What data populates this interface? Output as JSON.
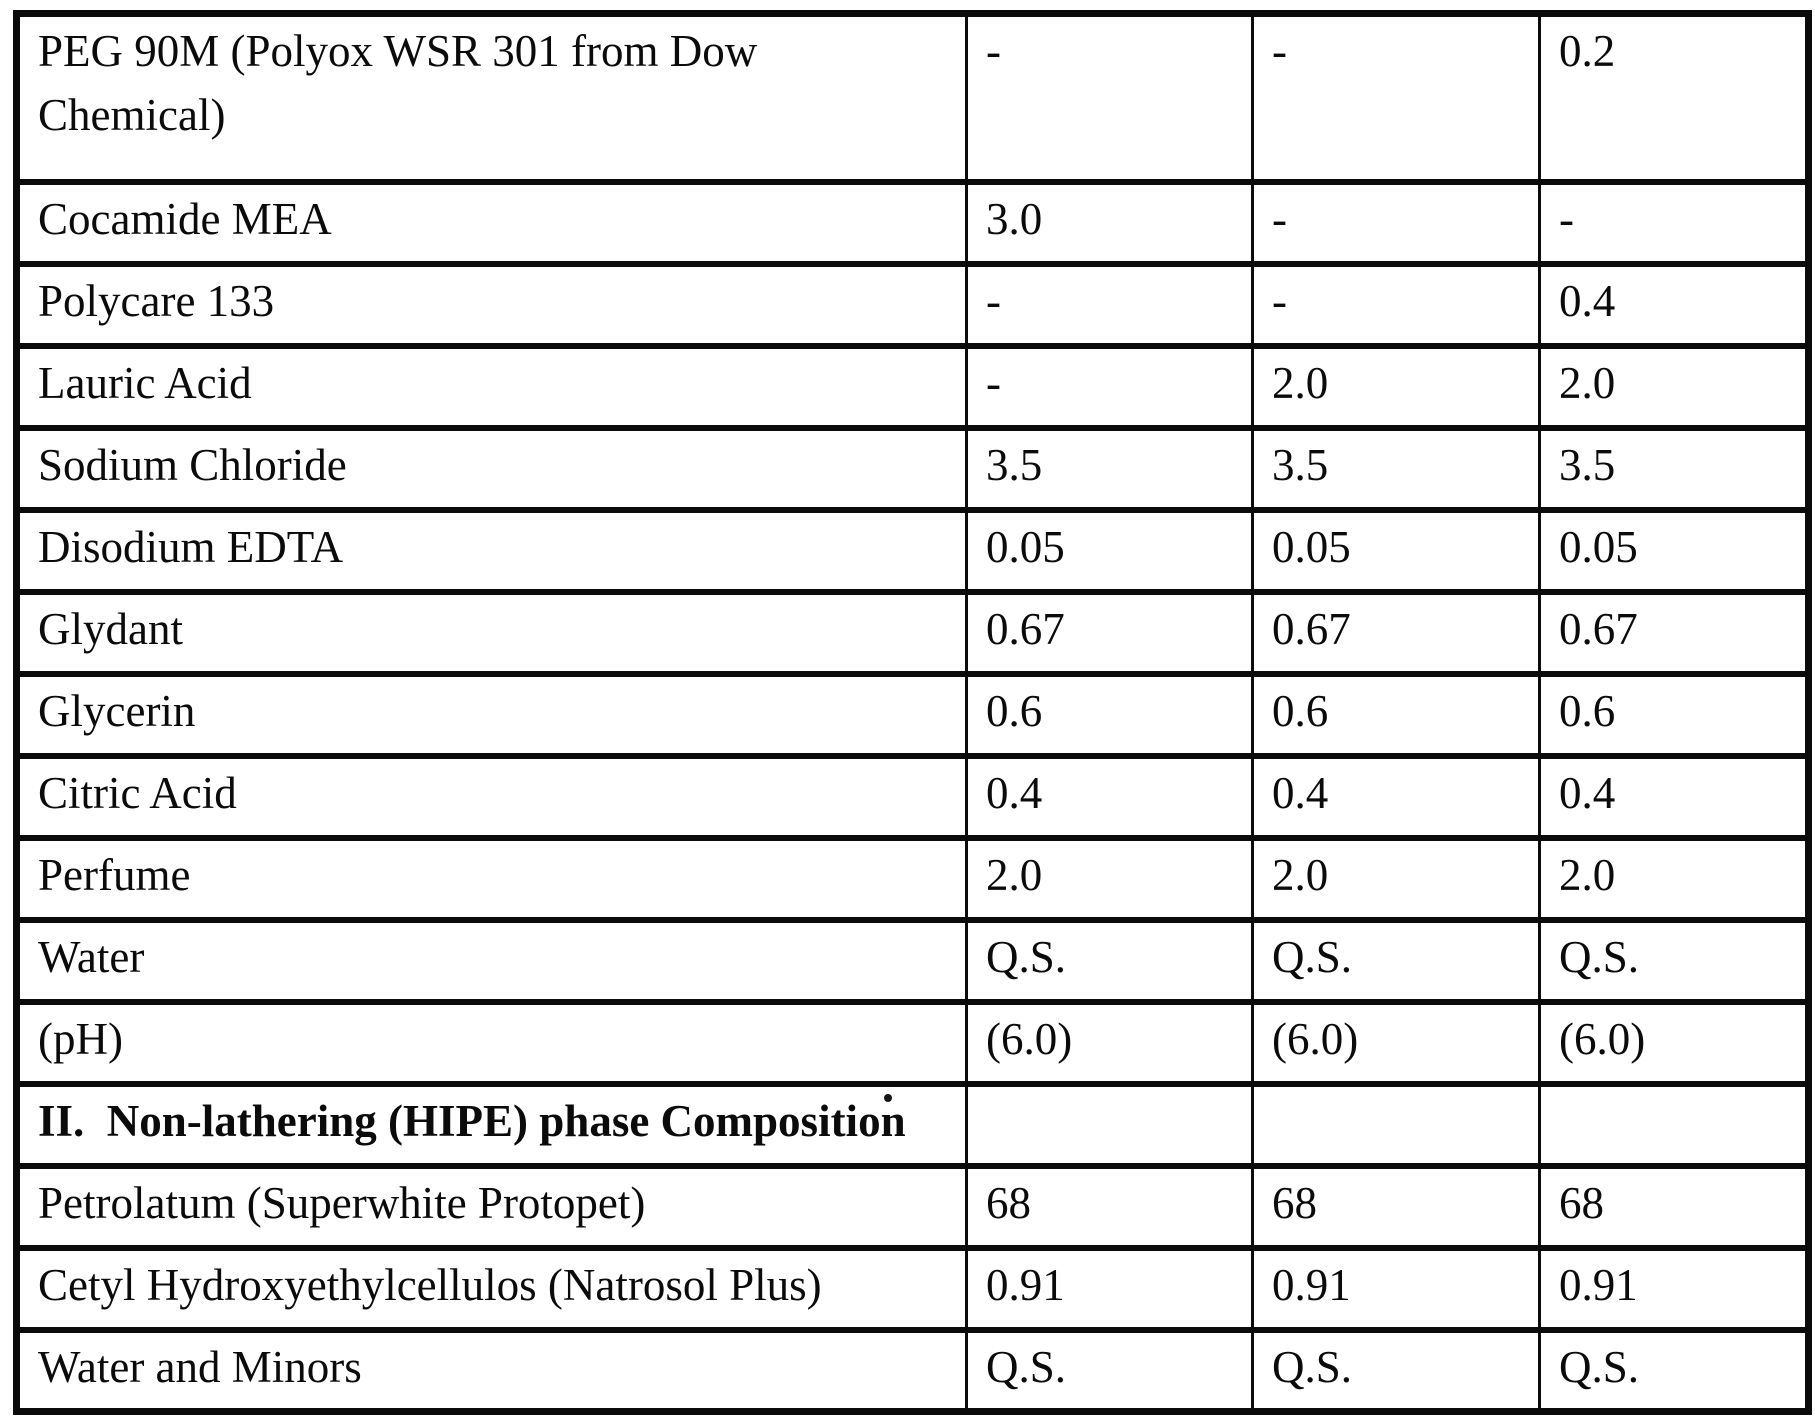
{
  "colors": {
    "ink": "#0b0b0b",
    "paper": "#ffffff"
  },
  "table": {
    "rows": [
      {
        "label": "PEG 90M (Polyox WSR 301 from Dow\nChemical)",
        "bold": false,
        "values": [
          "-",
          "-",
          "0.2"
        ]
      },
      {
        "label": "Cocamide MEA",
        "bold": false,
        "values": [
          "3.0",
          "-",
          "-"
        ]
      },
      {
        "label": "Polycare 133",
        "bold": false,
        "values": [
          "-",
          "-",
          "0.4"
        ]
      },
      {
        "label": "Lauric Acid",
        "bold": false,
        "values": [
          "-",
          "2.0",
          "2.0"
        ]
      },
      {
        "label": "Sodium Chloride",
        "bold": false,
        "values": [
          "3.5",
          "3.5",
          "3.5"
        ]
      },
      {
        "label": "Disodium EDTA",
        "bold": false,
        "values": [
          "0.05",
          "0.05",
          "0.05"
        ]
      },
      {
        "label": "Glydant",
        "bold": false,
        "values": [
          "0.67",
          "0.67",
          "0.67"
        ]
      },
      {
        "label": "Glycerin",
        "bold": false,
        "values": [
          "0.6",
          "0.6",
          "0.6"
        ]
      },
      {
        "label": "Citric Acid",
        "bold": false,
        "values": [
          "0.4",
          "0.4",
          "0.4"
        ]
      },
      {
        "label": "Perfume",
        "bold": false,
        "values": [
          "2.0",
          "2.0",
          "2.0"
        ]
      },
      {
        "label": "Water",
        "bold": false,
        "values": [
          "Q.S.",
          "Q.S.",
          "Q.S."
        ]
      },
      {
        "label": "(pH)",
        "bold": false,
        "values": [
          "(6.0)",
          "(6.0)",
          "(6.0)"
        ]
      },
      {
        "label": "II.  Non-lathering (HIPE) phase Composition",
        "bold": true,
        "values": [
          "",
          "",
          ""
        ]
      },
      {
        "label": "Petrolatum (Superwhite Protopet)",
        "bold": false,
        "values": [
          "68",
          "68",
          "68"
        ]
      },
      {
        "label": "Cetyl Hydroxyethylcellulos (Natrosol Plus)",
        "bold": false,
        "values": [
          "0.91",
          "0.91",
          "0.91"
        ]
      },
      {
        "label": "Water and Minors",
        "bold": false,
        "values": [
          "Q.S.",
          "Q.S.",
          "Q.S."
        ]
      }
    ]
  }
}
